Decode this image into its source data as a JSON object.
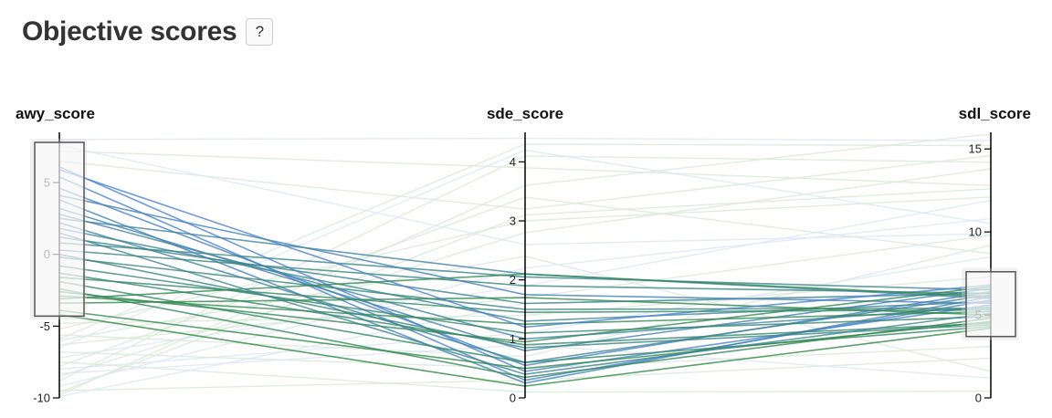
{
  "header": {
    "title": "Objective scores",
    "help_label": "?"
  },
  "chart_data": {
    "type": "parallel-coordinates",
    "axes": [
      {
        "name": "awy_score",
        "range": [
          -10,
          8.5
        ],
        "ticks": [
          -10,
          -5,
          0,
          5
        ],
        "brush": [
          -4.3,
          7.8
        ]
      },
      {
        "name": "sde_score",
        "range": [
          0,
          4.5
        ],
        "ticks": [
          0,
          1,
          2,
          3,
          4
        ],
        "brush": null
      },
      {
        "name": "sdl_score",
        "range": [
          0,
          16
        ],
        "ticks": [
          0,
          5,
          10,
          15
        ],
        "brush": [
          3.7,
          7.6
        ]
      }
    ],
    "colors": {
      "selected_high": "#4f7ff0",
      "selected_low": "#2e8a3e",
      "unselected_green": "#d9ead9",
      "unselected_blue": "#dfe6f8",
      "brush_fill": "#ffffff",
      "brush_stroke": "#555555"
    },
    "selected_lines": [
      [
        6.1,
        0.45,
        5.6
      ],
      [
        5.4,
        0.3,
        5.9
      ],
      [
        4.6,
        0.55,
        6.4
      ],
      [
        3.8,
        0.25,
        6.1
      ],
      [
        3.2,
        0.8,
        6.6
      ],
      [
        2.8,
        1.0,
        5.5
      ],
      [
        2.2,
        0.6,
        6.2
      ],
      [
        1.8,
        1.3,
        5.8
      ],
      [
        1.2,
        1.6,
        6.3
      ],
      [
        0.8,
        2.05,
        6.5
      ],
      [
        0.3,
        1.9,
        6.3
      ],
      [
        -0.2,
        1.5,
        5.4
      ],
      [
        -0.8,
        1.1,
        4.9
      ],
      [
        -1.3,
        0.9,
        4.5
      ],
      [
        -1.9,
        0.6,
        4.3
      ],
      [
        -2.4,
        0.35,
        4.8
      ],
      [
        -2.9,
        1.25,
        5.2
      ],
      [
        -3.4,
        1.7,
        5.0
      ],
      [
        -3.9,
        0.5,
        4.6
      ],
      [
        -4.2,
        0.2,
        4.2
      ],
      [
        5.9,
        1.2,
        6.8
      ],
      [
        4.1,
        1.75,
        5.7
      ],
      [
        2.5,
        2.1,
        6.0
      ],
      [
        0.0,
        0.85,
        4.4
      ],
      [
        -1.6,
        1.45,
        5.3
      ],
      [
        -3.1,
        2.1,
        6.1
      ],
      [
        1.5,
        0.4,
        5.1
      ],
      [
        -2.6,
        0.95,
        6.7
      ]
    ],
    "background_lines": [
      [
        8.0,
        4.4,
        15.5
      ],
      [
        7.2,
        3.9,
        12.8
      ],
      [
        6.5,
        3.2,
        14.6
      ],
      [
        -6.5,
        4.2,
        10.5
      ],
      [
        -8.5,
        2.8,
        13.8
      ],
      [
        -9.8,
        3.6,
        15.9
      ],
      [
        -7.2,
        1.9,
        11.9
      ],
      [
        -5.6,
        0.7,
        9.2
      ],
      [
        -9.5,
        0.3,
        2.4
      ],
      [
        -8.0,
        1.1,
        8.5
      ],
      [
        -6.0,
        2.4,
        1.6
      ],
      [
        -7.5,
        0.1,
        0.4
      ],
      [
        -9.9,
        1.6,
        6.2
      ],
      [
        -5.2,
        3.0,
        12.1
      ],
      [
        -8.8,
        4.1,
        14.2
      ],
      [
        7.6,
        2.6,
        9.9
      ],
      [
        -4.8,
        1.4,
        7.3
      ],
      [
        -6.8,
        0.5,
        3.1
      ],
      [
        -9.2,
        2.2,
        10.8
      ],
      [
        -7.8,
        3.4,
        8.7
      ],
      [
        -5.9,
        4.3,
        15.2
      ],
      [
        -8.3,
        0.9,
        1.2
      ],
      [
        -9.6,
        3.1,
        12.6
      ],
      [
        -6.3,
        1.7,
        9.8
      ]
    ]
  }
}
